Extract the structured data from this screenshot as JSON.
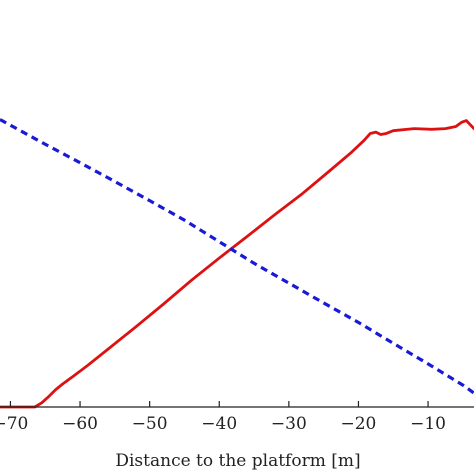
{
  "chart_data": {
    "type": "line",
    "title": "",
    "xlabel": "Distance to the platform [m]",
    "ylabel": "",
    "xlim": [
      -71.5,
      -3.4
    ],
    "ylim": [
      0,
      1
    ],
    "x_ticks": [
      -70,
      -60,
      -50,
      -40,
      -30,
      -20,
      -10
    ],
    "x_tick_labels": [
      "−70",
      "−60",
      "−50",
      "−40",
      "−30",
      "−20",
      "−10"
    ],
    "grid": false,
    "legend": "none",
    "series": [
      {
        "color": "#dd1111",
        "style": "solid",
        "x": [
          -71.5,
          -66.5,
          -65.5,
          -64.5,
          -63.5,
          -62.5,
          -61.0,
          -59.0,
          -56.0,
          -52.0,
          -48.0,
          -44.0,
          -40.0,
          -36.0,
          -32.0,
          -28.0,
          -24.0,
          -21.0,
          -19.2,
          -18.3,
          -17.5,
          -16.8,
          -16.0,
          -15.0,
          -12.0,
          -9.5,
          -7.5,
          -6.0,
          -5.2,
          -4.5,
          -3.4
        ],
        "y": [
          0.0,
          0.0,
          0.012,
          0.03,
          0.05,
          0.066,
          0.088,
          0.118,
          0.166,
          0.23,
          0.296,
          0.364,
          0.428,
          0.49,
          0.553,
          0.614,
          0.681,
          0.732,
          0.766,
          0.786,
          0.79,
          0.783,
          0.786,
          0.794,
          0.8,
          0.798,
          0.8,
          0.806,
          0.818,
          0.823,
          0.8
        ]
      },
      {
        "color": "#1a1ad6",
        "style": "dashed",
        "x": [
          -71.5,
          -65.0,
          -60.0,
          -55.0,
          -50.0,
          -45.0,
          -40.0,
          -35.0,
          -30.0,
          -25.0,
          -20.0,
          -15.0,
          -10.0,
          -5.0,
          -3.4
        ],
        "y": [
          0.826,
          0.755,
          0.702,
          0.648,
          0.593,
          0.537,
          0.475,
          0.413,
          0.356,
          0.299,
          0.243,
          0.183,
          0.124,
          0.063,
          0.04
        ]
      }
    ]
  }
}
